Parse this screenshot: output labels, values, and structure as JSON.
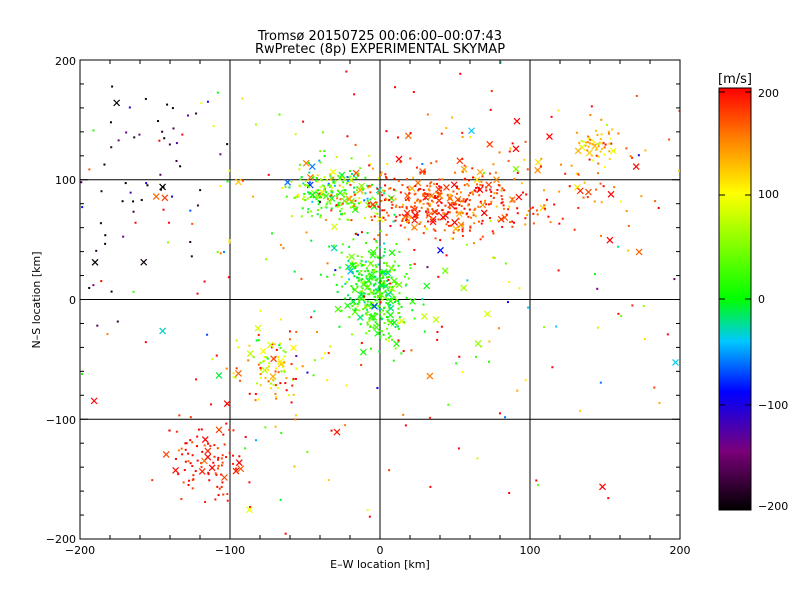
{
  "chart_data": {
    "type": "scatter",
    "title": "Tromsø 20150725 00:06:00–00:07:43",
    "subtitle": "RwPretec (8p) EXPERIMENTAL SKYMAP",
    "xlabel": "E–W location [km]",
    "ylabel": "N–S location [km]",
    "xlim": [
      -200,
      200
    ],
    "ylim": [
      -200,
      200
    ],
    "x_ticks": [
      "−200",
      "−100",
      "0",
      "100",
      "200"
    ],
    "y_ticks": [
      "−200",
      "−100",
      "0",
      "100",
      "200"
    ],
    "grid": true,
    "colorbar": {
      "label": "[m/s]",
      "range": [
        -200,
        200
      ],
      "ticks": [
        "200",
        "100",
        "0",
        "−100",
        "−200"
      ],
      "colormap": "black-purple-blue-cyan-green-yellow-red"
    },
    "marker_types": [
      "dot",
      "x"
    ],
    "clusters": [
      {
        "x": 0,
        "y": 0,
        "sx": 10,
        "sy": 18,
        "n": 260,
        "v": 20,
        "vs": 25
      },
      {
        "x": -10,
        "y": 20,
        "sx": 12,
        "sy": 15,
        "n": 120,
        "v": 10,
        "vs": 30
      },
      {
        "x": -30,
        "y": 90,
        "sx": 15,
        "sy": 12,
        "n": 240,
        "v": 40,
        "vs": 45
      },
      {
        "x": 40,
        "y": 80,
        "sx": 28,
        "sy": 14,
        "n": 380,
        "v": 175,
        "vs": 25
      },
      {
        "x": 100,
        "y": 100,
        "sx": 55,
        "sy": 30,
        "n": 130,
        "v": 170,
        "vs": 35
      },
      {
        "x": 145,
        "y": 130,
        "sx": 8,
        "sy": 8,
        "n": 50,
        "v": 120,
        "vs": 30
      },
      {
        "x": -70,
        "y": -60,
        "sx": 12,
        "sy": 14,
        "n": 90,
        "v": 120,
        "vs": 60
      },
      {
        "x": -115,
        "y": -135,
        "sx": 12,
        "sy": 20,
        "n": 100,
        "v": 190,
        "vs": 15
      },
      {
        "x": -150,
        "y": 120,
        "sx": 25,
        "sy": 30,
        "n": 40,
        "v": -170,
        "vs": 40
      },
      {
        "x": -170,
        "y": 50,
        "sx": 20,
        "sy": 40,
        "n": 25,
        "v": -180,
        "vs": 20
      },
      {
        "x": 0,
        "y": 0,
        "sx": 110,
        "sy": 100,
        "n": 260,
        "v": 120,
        "vs": 110
      }
    ]
  }
}
